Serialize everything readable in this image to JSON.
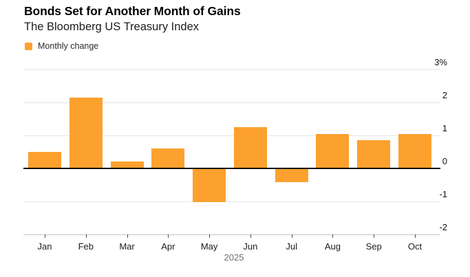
{
  "header": {
    "title": "Bonds Set for Another Month of Gains",
    "subtitle": "The Bloomberg US Treasury Index"
  },
  "legend": {
    "label": "Monthly change",
    "swatch_color": "#FCA12E"
  },
  "chart_data": {
    "type": "bar",
    "title": "Bonds Set for Another Month of Gains",
    "subtitle": "The Bloomberg US Treasury Index",
    "series_name": "Monthly change",
    "categories": [
      "Jan",
      "Feb",
      "Mar",
      "Apr",
      "May",
      "Jun",
      "Jul",
      "Aug",
      "Sep",
      "Oct"
    ],
    "values": [
      0.5,
      2.15,
      0.2,
      0.6,
      -1.0,
      1.25,
      -0.4,
      1.05,
      0.85,
      1.05
    ],
    "unit": "%",
    "xlabel": "2025",
    "ylabel": "",
    "ylim": [
      -2,
      3
    ],
    "y_tick_values": [
      3,
      2,
      1,
      0,
      -1,
      -2
    ],
    "y_tick_labels": [
      "3%",
      "2",
      "1",
      "0",
      "-1",
      "-2"
    ],
    "bar_color": "#FCA12E",
    "gridline_color": "#e5e5e5",
    "zero_line_color": "#0d0d0d",
    "grid": true,
    "legend_position": "top-left",
    "axis_side": "right"
  }
}
